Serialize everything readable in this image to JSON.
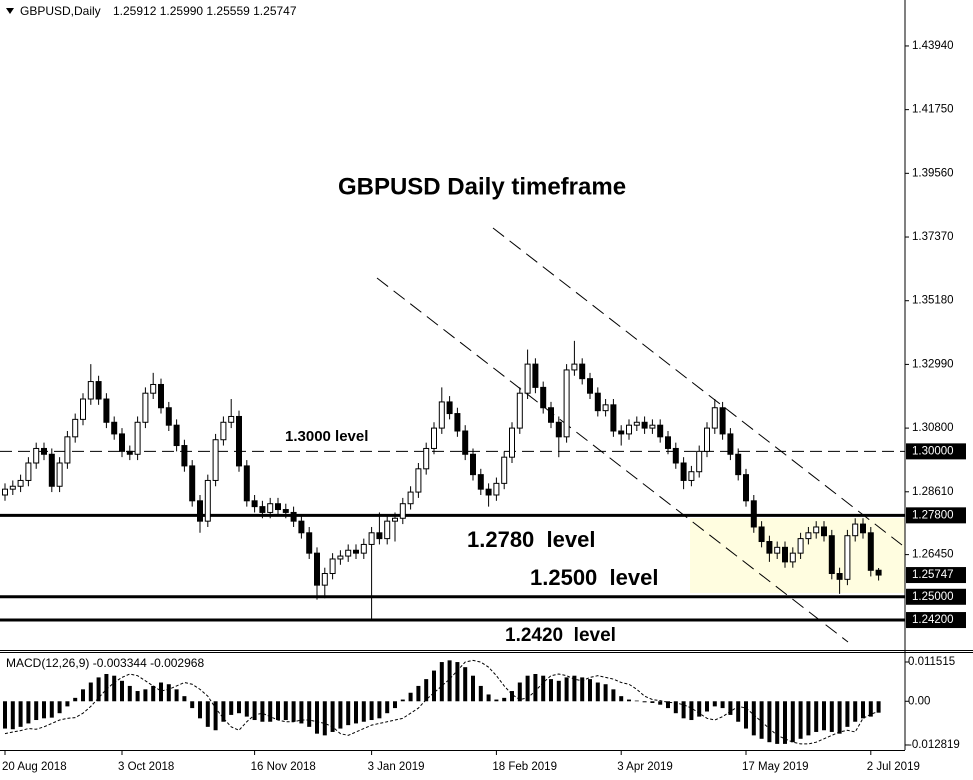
{
  "chart_data": [
    {
      "type": "candlestick",
      "header": "GBPUSD,Daily",
      "header_values": "1.25912 1.25990 1.25559 1.25747",
      "title": "GBPUSD Daily timeframe",
      "categories": [
        "20 Aug 2018",
        null,
        null,
        null,
        null,
        null,
        null,
        null,
        null,
        null,
        null,
        null,
        null,
        null,
        null,
        "3 Oct 2018",
        null,
        null,
        null,
        null,
        null,
        null,
        null,
        null,
        null,
        null,
        null,
        null,
        null,
        null,
        null,
        null,
        "16 Nov 2018",
        null,
        null,
        null,
        null,
        null,
        null,
        null,
        null,
        null,
        null,
        null,
        null,
        null,
        null,
        "3 Jan 2019",
        null,
        null,
        null,
        null,
        null,
        null,
        null,
        null,
        null,
        null,
        null,
        null,
        null,
        null,
        null,
        "18 Feb 2019",
        null,
        null,
        null,
        null,
        null,
        null,
        null,
        null,
        null,
        null,
        null,
        null,
        null,
        null,
        null,
        "3 Apr 2019",
        null,
        null,
        null,
        null,
        null,
        null,
        null,
        null,
        null,
        null,
        null,
        null,
        null,
        null,
        null,
        "17 May 2019",
        null,
        null,
        null,
        null,
        null,
        null,
        null,
        null,
        null,
        null,
        null,
        null,
        null,
        null,
        null,
        "2 Jul 2019",
        null
      ],
      "open": [
        1.285,
        1.287,
        1.288,
        1.29,
        1.296,
        1.301,
        1.299,
        1.288,
        1.296,
        1.305,
        1.311,
        1.318,
        1.324,
        1.318,
        1.31,
        1.306,
        1.3,
        1.299,
        1.31,
        1.32,
        1.323,
        1.315,
        1.309,
        1.302,
        1.295,
        1.283,
        1.276,
        1.29,
        1.304,
        1.31,
        1.312,
        1.295,
        1.283,
        1.281,
        1.279,
        1.282,
        1.28,
        1.279,
        1.276,
        1.272,
        1.265,
        1.254,
        1.258,
        1.263,
        1.264,
        1.266,
        1.265,
        1.268,
        1.272,
        1.27,
        1.276,
        1.277,
        1.282,
        1.286,
        1.294,
        1.301,
        1.308,
        1.317,
        1.313,
        1.307,
        1.299,
        1.292,
        1.287,
        1.285,
        1.289,
        1.298,
        1.308,
        1.32,
        1.33,
        1.322,
        1.315,
        1.31,
        1.305,
        1.328,
        1.33,
        1.325,
        1.32,
        1.314,
        1.316,
        1.307,
        1.306,
        1.309,
        1.31,
        1.308,
        1.309,
        1.305,
        1.301,
        1.296,
        1.29,
        1.293,
        1.3,
        1.308,
        1.315,
        1.306,
        1.299,
        1.292,
        1.283,
        1.274,
        1.269,
        1.265,
        1.267,
        1.262,
        1.265,
        1.27,
        1.272,
        1.274,
        1.271,
        1.258,
        1.256,
        1.271,
        1.275,
        1.272,
        1.25912
      ],
      "high": [
        1.289,
        1.29,
        1.292,
        1.298,
        1.303,
        1.303,
        1.301,
        1.298,
        1.307,
        1.313,
        1.32,
        1.33,
        1.326,
        1.32,
        1.312,
        1.308,
        1.302,
        1.312,
        1.322,
        1.327,
        1.325,
        1.317,
        1.311,
        1.304,
        1.297,
        1.285,
        1.292,
        1.306,
        1.312,
        1.318,
        1.314,
        1.297,
        1.285,
        1.283,
        1.284,
        1.284,
        1.282,
        1.281,
        1.278,
        1.274,
        1.267,
        1.26,
        1.265,
        1.266,
        1.268,
        1.268,
        1.27,
        1.274,
        1.279,
        1.278,
        1.279,
        1.284,
        1.288,
        1.296,
        1.303,
        1.31,
        1.322,
        1.319,
        1.315,
        1.309,
        1.301,
        1.294,
        1.289,
        1.291,
        1.3,
        1.31,
        1.322,
        1.335,
        1.332,
        1.324,
        1.317,
        1.312,
        1.33,
        1.338,
        1.332,
        1.327,
        1.322,
        1.318,
        1.318,
        1.309,
        1.311,
        1.312,
        1.312,
        1.311,
        1.311,
        1.307,
        1.303,
        1.298,
        1.295,
        1.302,
        1.31,
        1.318,
        1.317,
        1.308,
        1.301,
        1.294,
        1.285,
        1.276,
        1.271,
        1.269,
        1.269,
        1.267,
        1.272,
        1.274,
        1.276,
        1.276,
        1.273,
        1.26,
        1.273,
        1.277,
        1.277,
        1.274,
        1.2599
      ],
      "low": [
        1.283,
        1.285,
        1.286,
        1.288,
        1.294,
        1.297,
        1.286,
        1.286,
        1.294,
        1.303,
        1.309,
        1.316,
        1.316,
        1.308,
        1.304,
        1.298,
        1.297,
        1.297,
        1.308,
        1.318,
        1.313,
        1.307,
        1.3,
        1.293,
        1.281,
        1.272,
        1.274,
        1.288,
        1.302,
        1.308,
        1.293,
        1.281,
        1.279,
        1.277,
        1.277,
        1.278,
        1.277,
        1.274,
        1.27,
        1.263,
        1.249,
        1.2495,
        1.256,
        1.261,
        1.262,
        1.263,
        1.263,
        1.2425,
        1.268,
        1.268,
        1.269,
        1.275,
        1.28,
        1.284,
        1.292,
        1.299,
        1.306,
        1.311,
        1.305,
        1.297,
        1.29,
        1.285,
        1.281,
        1.283,
        1.287,
        1.296,
        1.306,
        1.318,
        1.32,
        1.313,
        1.308,
        1.298,
        1.303,
        1.326,
        1.323,
        1.318,
        1.312,
        1.312,
        1.305,
        1.302,
        1.304,
        1.307,
        1.306,
        1.306,
        1.303,
        1.299,
        1.294,
        1.287,
        1.288,
        1.291,
        1.298,
        1.306,
        1.304,
        1.297,
        1.29,
        1.281,
        1.272,
        1.267,
        1.262,
        1.263,
        1.26,
        1.26,
        1.263,
        1.268,
        1.27,
        1.269,
        1.256,
        1.251,
        1.254,
        1.269,
        1.27,
        1.257,
        1.25559
      ],
      "close": [
        1.287,
        1.288,
        1.29,
        1.296,
        1.301,
        1.299,
        1.288,
        1.296,
        1.305,
        1.311,
        1.318,
        1.324,
        1.318,
        1.31,
        1.306,
        1.3,
        1.299,
        1.31,
        1.32,
        1.323,
        1.315,
        1.309,
        1.302,
        1.295,
        1.283,
        1.276,
        1.29,
        1.304,
        1.31,
        1.312,
        1.295,
        1.283,
        1.281,
        1.279,
        1.282,
        1.28,
        1.279,
        1.276,
        1.272,
        1.265,
        1.254,
        1.258,
        1.263,
        1.264,
        1.266,
        1.265,
        1.268,
        1.272,
        1.27,
        1.276,
        1.277,
        1.282,
        1.286,
        1.294,
        1.301,
        1.308,
        1.317,
        1.313,
        1.307,
        1.299,
        1.292,
        1.287,
        1.285,
        1.289,
        1.298,
        1.308,
        1.32,
        1.33,
        1.322,
        1.315,
        1.31,
        1.305,
        1.328,
        1.33,
        1.325,
        1.32,
        1.314,
        1.316,
        1.307,
        1.306,
        1.309,
        1.31,
        1.308,
        1.309,
        1.305,
        1.301,
        1.296,
        1.29,
        1.293,
        1.3,
        1.308,
        1.315,
        1.306,
        1.299,
        1.292,
        1.283,
        1.274,
        1.269,
        1.265,
        1.267,
        1.262,
        1.265,
        1.27,
        1.272,
        1.274,
        1.271,
        1.258,
        1.256,
        1.271,
        1.275,
        1.272,
        1.2591,
        1.25747
      ],
      "up_color": "#ffffff",
      "down_color": "#000000",
      "ylim": [
        1.2317,
        1.4552
      ],
      "yticks": [
        {
          "value": 1.4394,
          "label": "1.43940"
        },
        {
          "value": 1.4175,
          "label": "1.41750"
        },
        {
          "value": 1.3956,
          "label": "1.39560"
        },
        {
          "value": 1.3737,
          "label": "1.37370"
        },
        {
          "value": 1.3518,
          "label": "1.35180"
        },
        {
          "value": 1.3299,
          "label": "1.32990"
        },
        {
          "value": 1.308,
          "label": "1.30800"
        },
        {
          "value": 1.2861,
          "label": "1.28610"
        },
        {
          "value": 1.2645,
          "label": "1.26450"
        }
      ],
      "levels": [
        {
          "value": 1.3,
          "label": "1.30000",
          "text": "1.3000 level",
          "style": "dashed"
        },
        {
          "value": 1.278,
          "label": "1.27800",
          "text": "1.2780  level",
          "style": "solid"
        },
        {
          "value": 1.25,
          "label": "1.25000",
          "text": "1.2500  level",
          "style": "solid"
        },
        {
          "value": 1.242,
          "label": "1.24200",
          "text": "1.2420  level",
          "style": "solid"
        }
      ],
      "current": {
        "value": 1.25747,
        "label": "1.25747"
      },
      "grid": false
    },
    {
      "type": "macd",
      "header": "MACD(12,26,9) -0.003344 -0.002968",
      "values": [
        -0.008,
        -0.0082,
        -0.0075,
        -0.0065,
        -0.0055,
        -0.005,
        -0.0048,
        -0.0035,
        -0.0015,
        0.001,
        0.0035,
        0.0055,
        0.007,
        0.008,
        0.0075,
        0.006,
        0.0045,
        0.003,
        0.0035,
        0.0045,
        0.0055,
        0.005,
        0.0035,
        0.0015,
        -0.002,
        -0.005,
        -0.0075,
        -0.0085,
        -0.006,
        -0.004,
        -0.0035,
        -0.0045,
        -0.0055,
        -0.006,
        -0.006,
        -0.0055,
        -0.0055,
        -0.006,
        -0.0065,
        -0.0075,
        -0.0095,
        -0.01,
        -0.009,
        -0.008,
        -0.007,
        -0.0065,
        -0.006,
        -0.0055,
        -0.005,
        -0.0035,
        -0.002,
        0.0005,
        0.0025,
        0.0045,
        0.0065,
        0.009,
        0.0115,
        0.012,
        0.0115,
        0.01,
        0.0075,
        0.0045,
        0.002,
        0.0005,
        0.001,
        0.003,
        0.0055,
        0.0075,
        0.008,
        0.0075,
        0.0065,
        0.006,
        0.007,
        0.0075,
        0.007,
        0.0065,
        0.0055,
        0.005,
        0.0035,
        0.0015,
        0.0005,
        0.0002,
        -0.0003,
        -0.0005,
        -0.001,
        -0.002,
        -0.0035,
        -0.005,
        -0.0055,
        -0.0045,
        -0.003,
        -0.0015,
        -0.002,
        -0.004,
        -0.006,
        -0.008,
        -0.01,
        -0.011,
        -0.012,
        -0.0125,
        -0.0125,
        -0.012,
        -0.011,
        -0.01,
        -0.009,
        -0.0085,
        -0.009,
        -0.0095,
        -0.0075,
        -0.006,
        -0.005,
        -0.0045,
        -0.003344
      ],
      "signal": [
        -0.0095,
        -0.009,
        -0.0086,
        -0.008,
        -0.0082,
        -0.0075,
        -0.0065,
        -0.0055,
        -0.005,
        -0.0048,
        -0.0035,
        -0.0015,
        0.001,
        0.0035,
        0.0055,
        0.007,
        0.008,
        0.0075,
        0.006,
        0.0045,
        0.003,
        0.0035,
        0.0045,
        0.0055,
        0.005,
        0.0035,
        0.0015,
        -0.002,
        -0.005,
        -0.0075,
        -0.0085,
        -0.006,
        -0.004,
        -0.0035,
        -0.0045,
        -0.0055,
        -0.006,
        -0.006,
        -0.0055,
        -0.0055,
        -0.006,
        -0.0065,
        -0.0075,
        -0.0095,
        -0.01,
        -0.009,
        -0.008,
        -0.007,
        -0.0065,
        -0.006,
        -0.0055,
        -0.005,
        -0.0035,
        -0.002,
        0.0005,
        0.0025,
        0.0045,
        0.0065,
        0.009,
        0.0115,
        0.012,
        0.0115,
        0.01,
        0.0075,
        0.0045,
        0.002,
        0.0005,
        0.001,
        0.003,
        0.0055,
        0.0075,
        0.008,
        0.0075,
        0.0065,
        0.006,
        0.007,
        0.0075,
        0.007,
        0.0065,
        0.0055,
        0.005,
        0.0035,
        0.0015,
        0.0005,
        0.0002,
        -0.0003,
        -0.0005,
        -0.001,
        -0.002,
        -0.0035,
        -0.005,
        -0.0055,
        -0.0045,
        -0.003,
        -0.0015,
        -0.002,
        -0.004,
        -0.006,
        -0.008,
        -0.01,
        -0.011,
        -0.012,
        -0.0125,
        -0.0125,
        -0.012,
        -0.011,
        -0.01,
        -0.009,
        -0.0085,
        -0.009,
        -0.005,
        -0.0038,
        -0.002968
      ],
      "color": "#000000",
      "ylim": [
        -0.01429,
        0.01445
      ],
      "yticks": [
        0.011515,
        {
          "value": 0,
          "label": "0.00"
        },
        -0.012819
      ]
    }
  ]
}
